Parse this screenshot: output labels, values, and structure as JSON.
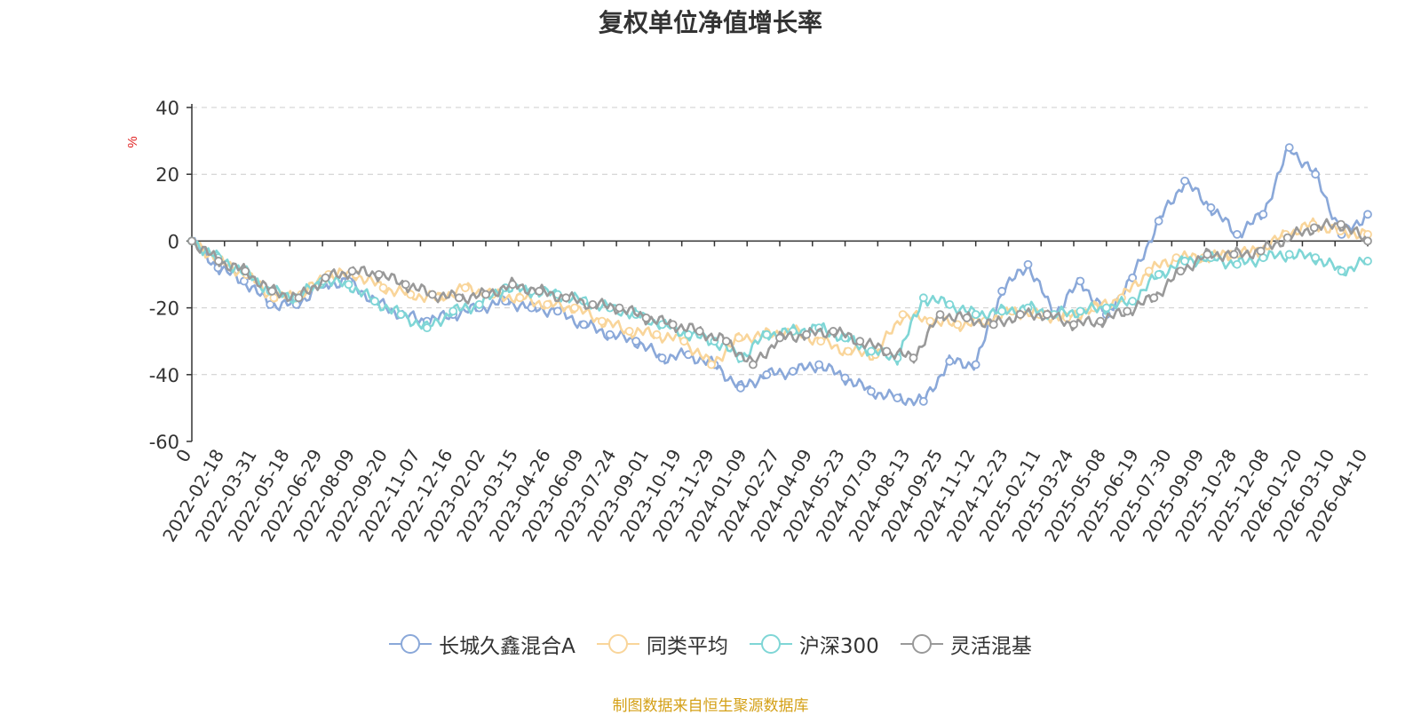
{
  "chart_data": {
    "type": "line",
    "title": "复权单位净值增长率",
    "ylabel": "%",
    "ylim": [
      -60,
      40
    ],
    "yticks": [
      40,
      20,
      0,
      -20,
      -40,
      -60
    ],
    "grid": true,
    "legend_position": "bottom",
    "x_tick_labels": [
      "0",
      "2022-02-18",
      "2022-03-31",
      "2022-05-18",
      "2022-06-29",
      "2022-08-09",
      "2022-09-20",
      "2022-11-07",
      "2022-12-16",
      "2023-02-02",
      "2023-03-15",
      "2023-04-26",
      "2023-06-09",
      "2023-07-24",
      "2023-09-01",
      "2023-10-19",
      "2023-11-29",
      "2024-01-09",
      "2024-02-27",
      "2024-04-09",
      "2024-05-23",
      "2024-07-03",
      "2024-08-13",
      "2024-09-25",
      "2024-11-12",
      "2024-12-23",
      "2025-02-11",
      "2025-03-24",
      "2025-05-08",
      "2025-06-19",
      "2025-07-30",
      "2025-09-09",
      "2025-10-28",
      "2025-12-08",
      "2026-01-20",
      "2026-03-10",
      "2026-04-10"
    ],
    "series": [
      {
        "name": "长城久鑫混合A",
        "color": "#8aa8d9",
        "values": [
          0,
          -8,
          -12,
          -19,
          -19,
          -13,
          -12,
          -18,
          -22,
          -24,
          -22,
          -20,
          -18,
          -20,
          -21,
          -25,
          -28,
          -30,
          -35,
          -34,
          -37,
          -44,
          -40,
          -39,
          -37,
          -41,
          -45,
          -47,
          -48,
          -36,
          -37,
          -15,
          -7,
          -22,
          -12,
          -22,
          -11,
          6,
          18,
          10,
          2,
          8,
          28,
          20,
          2,
          8
        ]
      },
      {
        "name": "同类平均",
        "color": "#f9d59a",
        "values": [
          0,
          -6,
          -10,
          -17,
          -16,
          -10,
          -10,
          -14,
          -16,
          -17,
          -14,
          -16,
          -17,
          -19,
          -20,
          -24,
          -27,
          -28,
          -30,
          -37,
          -29,
          -28,
          -27,
          -30,
          -33,
          -34,
          -22,
          -24,
          -25,
          -24,
          -21,
          -22,
          -23,
          -20,
          -17,
          -9,
          -5,
          -5,
          -4,
          -3,
          2,
          5,
          3,
          2
        ]
      },
      {
        "name": "沪深300",
        "color": "#7fd6d6",
        "values": [
          0,
          -5,
          -9,
          -15,
          -17,
          -12,
          -13,
          -18,
          -22,
          -26,
          -21,
          -19,
          -14,
          -15,
          -16,
          -18,
          -20,
          -22,
          -25,
          -28,
          -30,
          -35,
          -28,
          -27,
          -26,
          -29,
          -33,
          -35,
          -17,
          -19,
          -22,
          -21,
          -20,
          -22,
          -21,
          -20,
          -18,
          -10,
          -6,
          -5,
          -7,
          -5,
          -4,
          -5,
          -9,
          -6
        ]
      },
      {
        "name": "灵活混基",
        "color": "#999999",
        "values": [
          0,
          -6,
          -9,
          -15,
          -17,
          -11,
          -9,
          -10,
          -13,
          -16,
          -17,
          -16,
          -13,
          -15,
          -17,
          -19,
          -20,
          -23,
          -25,
          -27,
          -30,
          -37,
          -29,
          -28,
          -27,
          -30,
          -33,
          -35,
          -22,
          -23,
          -25,
          -22,
          -22,
          -25,
          -24,
          -21,
          -17,
          -9,
          -4,
          -4,
          -3,
          1,
          4,
          5,
          0
        ]
      }
    ]
  },
  "footer": {
    "text": "制图数据来自恒生聚源数据库"
  }
}
